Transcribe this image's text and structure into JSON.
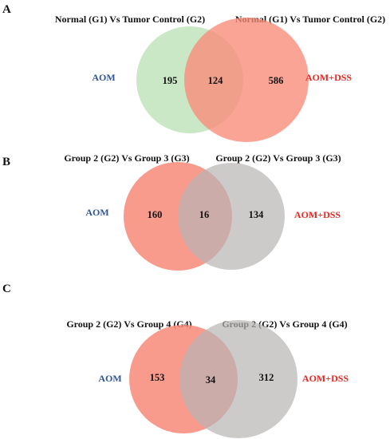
{
  "colors": {
    "left_label": "#2f5597",
    "right_label": "#e8251f",
    "green": "#a9d8a0",
    "salmon": "#f88a78",
    "grey": "#b8b3b3",
    "overlap_a": "#f4885f"
  },
  "panels": [
    {
      "letter": "A",
      "left_title": "Normal (G1) Vs Tumor Control (G2)",
      "right_title": "Normal (G1) Vs Tumor Control (G2)",
      "left_label": "AOM",
      "right_label": "AOM+DSS",
      "left_only": "195",
      "both": "124",
      "right_only": "586",
      "left_fill": "green",
      "right_fill": "salmon"
    },
    {
      "letter": "B",
      "left_title": "Group 2 (G2) Vs Group 3 (G3)",
      "right_title": "Group 2 (G2) Vs Group 3 (G3)",
      "left_label": "AOM",
      "right_label": "AOM+DSS",
      "left_only": "160",
      "both": "16",
      "right_only": "134",
      "left_fill": "salmon",
      "right_fill": "grey"
    },
    {
      "letter": "C",
      "left_title": "Group 2 (G2) Vs Group 4 (G4)",
      "right_title": "Group 2 (G2) Vs Group 4 (G4)",
      "left_label": "AOM",
      "right_label": "AOM+DSS",
      "left_only": "153",
      "both": "34",
      "right_only": "312",
      "left_fill": "salmon",
      "right_fill": "grey"
    }
  ]
}
